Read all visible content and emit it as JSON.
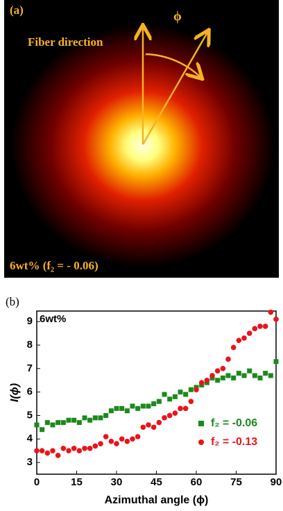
{
  "panel_a": {
    "label": "(a)",
    "arrow_label": "Fiber direction",
    "angle_symbol": "ϕ",
    "caption": "6wt% (f₂ = - 0.06)"
  },
  "chart_data": {
    "type": "scatter",
    "panel_label": "(b)",
    "title": "6wt%",
    "x_label": "Azimuthal angle (ϕ)",
    "y_label": "I(ϕ)",
    "xlim": [
      0,
      90
    ],
    "ylim": [
      2.5,
      9.45
    ],
    "xticks": [
      0,
      15,
      30,
      45,
      60,
      75,
      90
    ],
    "yticks": [
      3,
      4,
      5,
      6,
      7,
      8,
      9
    ],
    "x": [
      0,
      2,
      4,
      6,
      8,
      10,
      12,
      14,
      16,
      18,
      20,
      22,
      24,
      26,
      28,
      30,
      32,
      34,
      36,
      38,
      40,
      42,
      44,
      46,
      48,
      50,
      52,
      54,
      56,
      58,
      60,
      62,
      64,
      66,
      68,
      70,
      72,
      74,
      76,
      78,
      80,
      82,
      84,
      86,
      88,
      90
    ],
    "legend": "lower right",
    "series": [
      {
        "name": "f₂ = -0.06",
        "color": "#1a8a1a",
        "marker": "square",
        "values": [
          4.6,
          4.4,
          4.7,
          4.6,
          4.7,
          4.7,
          4.8,
          4.8,
          4.7,
          4.9,
          4.8,
          4.9,
          4.9,
          5.0,
          5.2,
          5.3,
          5.3,
          5.2,
          5.4,
          5.3,
          5.4,
          5.4,
          5.5,
          5.6,
          5.9,
          5.7,
          5.8,
          6.0,
          5.9,
          6.1,
          6.2,
          6.3,
          6.4,
          6.6,
          6.5,
          6.6,
          6.7,
          6.6,
          6.8,
          6.7,
          6.9,
          6.7,
          6.6,
          6.8,
          6.7,
          7.3
        ]
      },
      {
        "name": "f₂ = -0.13",
        "color": "#e8141a",
        "marker": "circle",
        "values": [
          3.5,
          3.5,
          3.4,
          3.5,
          3.3,
          3.6,
          3.5,
          3.6,
          3.5,
          3.6,
          3.6,
          3.7,
          3.8,
          4.1,
          3.9,
          3.8,
          4.0,
          3.9,
          4.0,
          4.1,
          4.5,
          4.6,
          4.5,
          4.7,
          4.9,
          5.0,
          5.1,
          5.3,
          5.3,
          5.6,
          6.1,
          6.4,
          6.5,
          6.7,
          6.9,
          7.0,
          7.4,
          7.9,
          8.2,
          8.3,
          8.5,
          8.7,
          8.8,
          8.8,
          9.4,
          9.1
        ]
      }
    ]
  }
}
